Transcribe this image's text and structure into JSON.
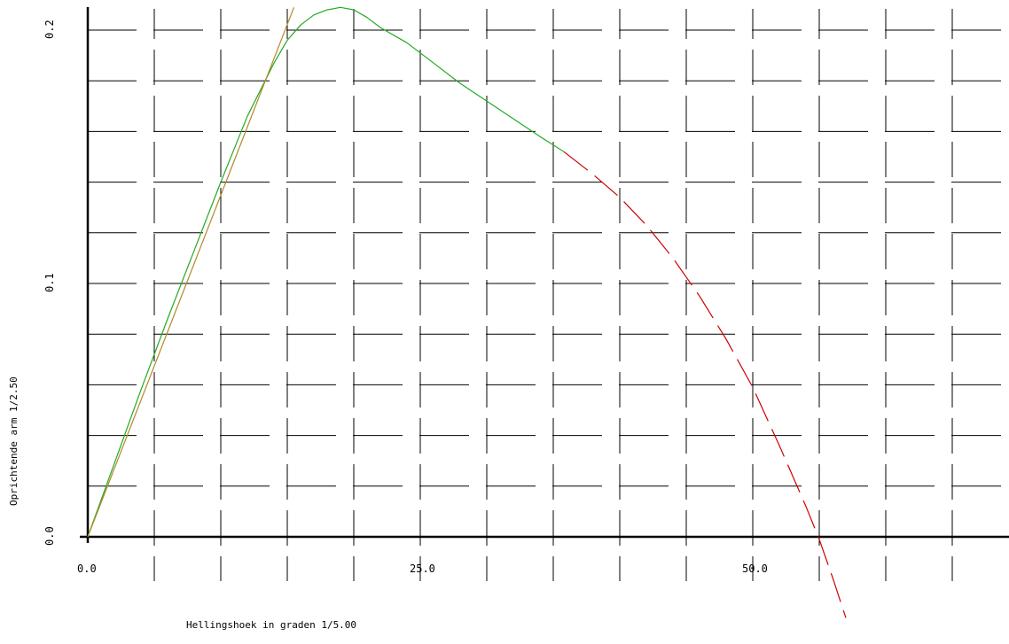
{
  "chart_data": {
    "type": "line",
    "xlabel": "Hellingshoek in graden 1/5.00",
    "ylabel": "Oprichtende arm 1/2.50",
    "xlim": [
      0,
      69.3
    ],
    "ylim": [
      0,
      0.21
    ],
    "x_ticks": [
      {
        "value": 0,
        "label": "0.0"
      },
      {
        "value": 25,
        "label": "25.0"
      },
      {
        "value": 50,
        "label": "50.0"
      }
    ],
    "y_ticks": [
      {
        "value": 0,
        "label": "0.0"
      },
      {
        "value": 0.1,
        "label": "0.1"
      },
      {
        "value": 0.2,
        "label": "0.2"
      }
    ],
    "grid": true,
    "grid_style": "dashed crosses",
    "grid_x_step": 2.5,
    "grid_y_step": 0.02,
    "series": [
      {
        "color": "#22aa22",
        "style": "solid",
        "x": [
          0,
          2,
          4,
          6,
          8,
          10,
          12,
          14,
          15,
          16,
          17,
          18,
          19,
          20,
          21,
          22,
          24,
          26,
          28,
          30,
          32,
          34,
          35.8
        ],
        "y": [
          0,
          0.029,
          0.058,
          0.086,
          0.113,
          0.14,
          0.166,
          0.187,
          0.196,
          0.202,
          0.206,
          0.208,
          0.209,
          0.208,
          0.205,
          0.201,
          0.195,
          0.187,
          0.179,
          0.172,
          0.165,
          0.158,
          0.152
        ]
      },
      {
        "color": "#cc0000",
        "style": "dashed",
        "x": [
          35.8,
          38,
          40,
          42,
          44,
          46,
          48,
          50,
          52,
          54,
          55,
          56,
          57
        ],
        "y": [
          0.152,
          0.143,
          0.134,
          0.123,
          0.11,
          0.095,
          0.078,
          0.059,
          0.036,
          0.012,
          -0.001,
          -0.016,
          -0.032
        ]
      },
      {
        "color": "#b08a2a",
        "style": "solid",
        "x": [
          0,
          15.5
        ],
        "y": [
          0,
          0.209
        ]
      }
    ]
  }
}
